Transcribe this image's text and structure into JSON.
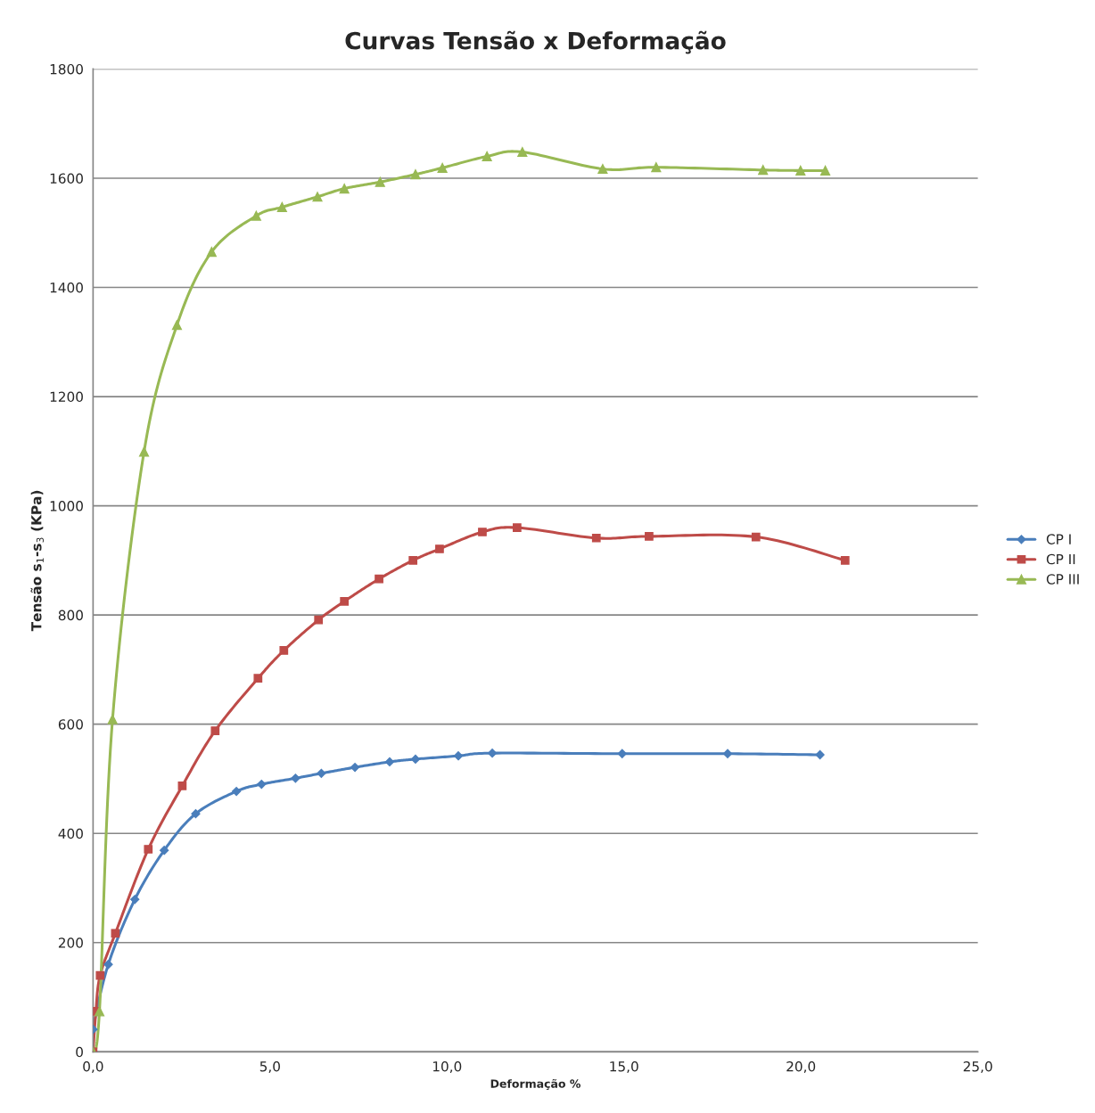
{
  "chart_data": {
    "type": "line",
    "title": "Curvas Tensão x Deformação",
    "xlabel": "Deformação %",
    "ylabel": "Tensão s$_{1}$-s$_{3}$ (KPa)",
    "xlim": [
      0,
      25
    ],
    "ylim": [
      0,
      1800
    ],
    "xticks": [
      {
        "value": 0,
        "label": "0,0"
      },
      {
        "value": 5,
        "label": "5,0"
      },
      {
        "value": 10,
        "label": "10,0"
      },
      {
        "value": 15,
        "label": "15,0"
      },
      {
        "value": 20,
        "label": "20,0"
      },
      {
        "value": 25,
        "label": "25,0"
      }
    ],
    "yticks": [
      0,
      200,
      400,
      600,
      800,
      1000,
      1200,
      1400,
      1600,
      1800
    ],
    "grid": "y",
    "legend": "right",
    "series": [
      {
        "name": "CP I",
        "color": "#4a7ebb",
        "marker": "diamond",
        "x": [
          0,
          0.0,
          0.43,
          1.18,
          2.01,
          2.9,
          4.05,
          4.76,
          5.72,
          6.45,
          7.4,
          8.38,
          9.11,
          10.32,
          11.28,
          14.95,
          17.93,
          20.54
        ],
        "values": [
          0,
          41,
          160,
          279,
          369,
          436,
          477,
          490,
          501,
          510,
          521,
          531,
          536,
          542,
          547,
          546,
          546,
          544
        ]
      },
      {
        "name": "CP II",
        "color": "#be4b48",
        "marker": "square",
        "x": [
          0,
          0.08,
          0.2,
          0.63,
          1.56,
          2.52,
          3.45,
          4.66,
          5.39,
          6.37,
          7.1,
          8.08,
          9.04,
          9.79,
          11.0,
          11.98,
          14.22,
          15.71,
          18.73,
          21.25
        ],
        "values": [
          0,
          74,
          140,
          217,
          371,
          487,
          588,
          684,
          735,
          791,
          825,
          866,
          900,
          921,
          952,
          960,
          941,
          944,
          943,
          900
        ]
      },
      {
        "name": "CP III",
        "color": "#98b954",
        "marker": "triangle",
        "x": [
          0,
          0.18,
          0.55,
          1.44,
          2.37,
          3.35,
          4.61,
          5.34,
          6.34,
          7.1,
          8.11,
          9.11,
          9.87,
          11.13,
          12.13,
          14.4,
          15.91,
          18.93,
          19.99,
          20.69
        ],
        "values": [
          0,
          74,
          609,
          1099,
          1331,
          1465,
          1531,
          1547,
          1566,
          1581,
          1593,
          1607,
          1619,
          1640,
          1648,
          1617,
          1620,
          1615,
          1614,
          1614
        ]
      }
    ]
  }
}
